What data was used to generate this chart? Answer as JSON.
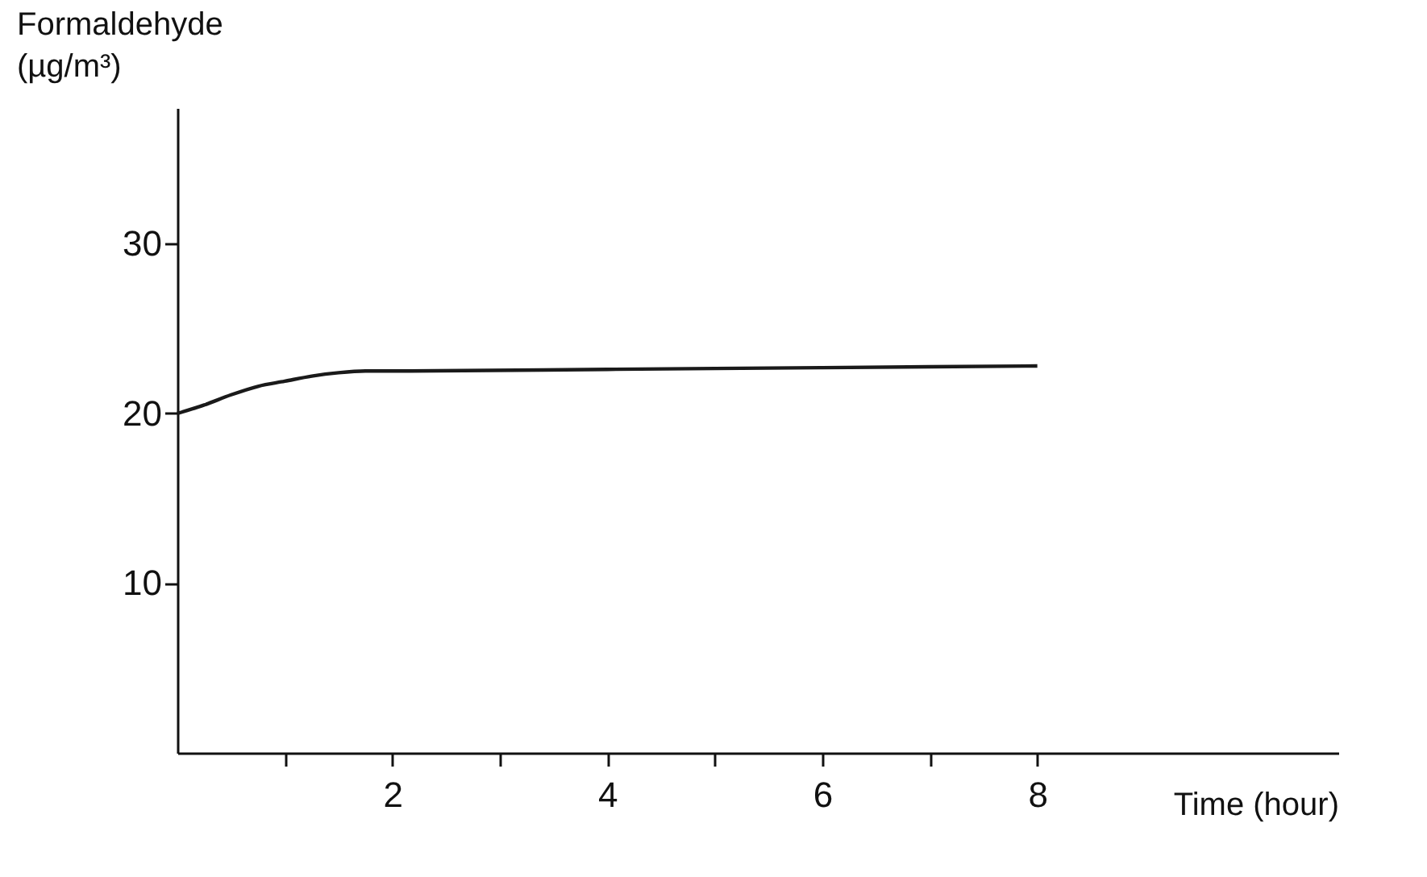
{
  "chart_data": {
    "type": "line",
    "xlabel": "Time (hour)",
    "ylabel": "Formaldehyde (µg/m³)",
    "x": [
      0,
      0.25,
      0.5,
      0.75,
      1,
      1.25,
      1.5,
      1.75,
      2,
      4,
      6,
      8
    ],
    "values": [
      20,
      20.5,
      21.1,
      21.6,
      21.9,
      22.2,
      22.4,
      22.5,
      22.5,
      22.6,
      22.7,
      22.8
    ],
    "color": "#1a1a1a",
    "xlim": [
      0,
      10.8
    ],
    "ylim": [
      0,
      38
    ],
    "xticks": [
      {
        "value": 1,
        "label": null
      },
      2,
      {
        "value": 3,
        "label": null
      },
      4,
      {
        "value": 5,
        "label": null
      },
      6,
      {
        "value": 7,
        "label": null
      },
      8
    ],
    "yticks": [
      10,
      20,
      30
    ],
    "marker": "none",
    "line_style": "solid"
  }
}
